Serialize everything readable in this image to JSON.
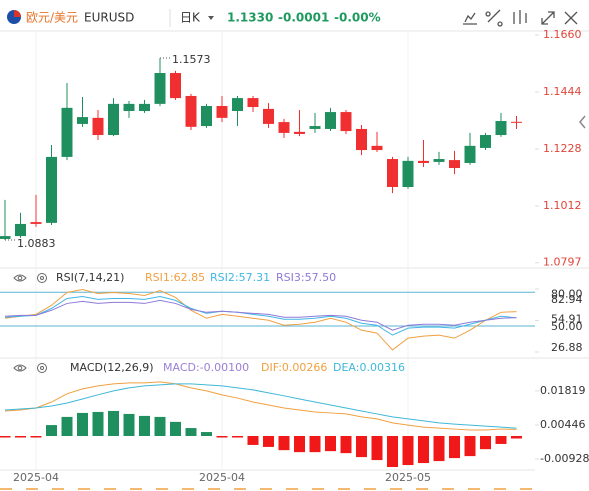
{
  "header": {
    "pair_name": "欧元/美元",
    "symbol": "EURUSD",
    "period": "日K",
    "price": "1.1330",
    "change": "-0.0001",
    "change_pct": "-0.00%"
  },
  "chart_data": [
    {
      "type": "candlestick",
      "categories": [
        null,
        null,
        "2025-04",
        null,
        null,
        null,
        null,
        null,
        null,
        null,
        null,
        null,
        null,
        null,
        "2025-04",
        null,
        null,
        null,
        null,
        null,
        null,
        null,
        null,
        null,
        null,
        null,
        "2025-05",
        null,
        null,
        null,
        null,
        null,
        null,
        null
      ],
      "open": [
        1.0887,
        1.0898,
        1.0951,
        1.0948,
        1.1198,
        1.1323,
        1.1346,
        1.1281,
        1.1372,
        1.1372,
        1.1399,
        1.1516,
        1.1429,
        1.1315,
        1.1391,
        1.1372,
        1.1421,
        1.138,
        1.133,
        1.1293,
        1.1304,
        1.1304,
        1.1368,
        1.1304,
        1.124,
        1.119,
        1.1084,
        1.1183,
        1.1179,
        1.1186,
        1.1175,
        1.1232,
        1.1281,
        1.1331
      ],
      "high": [
        1.1035,
        1.0986,
        1.1054,
        1.1243,
        1.1478,
        1.1425,
        1.1376,
        1.1421,
        1.141,
        1.1414,
        1.1573,
        1.1524,
        1.1437,
        1.1399,
        1.1429,
        1.1429,
        1.1429,
        1.1402,
        1.1342,
        1.1376,
        1.1365,
        1.1384,
        1.1376,
        1.1319,
        1.1293,
        1.1198,
        1.1198,
        1.1262,
        1.1217,
        1.1221,
        1.1289,
        1.1289,
        1.1365,
        1.1353
      ],
      "low": [
        1.0883,
        1.0891,
        1.0933,
        1.094,
        1.1186,
        1.1312,
        1.1262,
        1.1277,
        1.1346,
        1.1365,
        1.1391,
        1.1414,
        1.13,
        1.1308,
        1.133,
        1.1315,
        1.1368,
        1.1308,
        1.127,
        1.1277,
        1.1289,
        1.1296,
        1.1285,
        1.1205,
        1.1217,
        1.1061,
        1.1077,
        1.116,
        1.1168,
        1.1133,
        1.1168,
        1.1224,
        1.1274,
        1.1304
      ],
      "close": [
        1.0898,
        1.0944,
        1.0944,
        1.1198,
        1.1384,
        1.1349,
        1.1281,
        1.1399,
        1.1399,
        1.1399,
        1.1516,
        1.1421,
        1.1312,
        1.1391,
        1.1346,
        1.1421,
        1.1387,
        1.1323,
        1.1289,
        1.1285,
        1.1315,
        1.1368,
        1.1296,
        1.1224,
        1.1224,
        1.1084,
        1.1183,
        1.1175,
        1.119,
        1.1156,
        1.124,
        1.1281,
        1.1334,
        1.133
      ],
      "up_color": "#1f8f5f",
      "down_color": "#f03030",
      "ylim": [
        1.0777,
        1.1679
      ],
      "yticks": [
        {
          "value": 1.166,
          "label": "1.1660"
        },
        1.1444,
        1.1228,
        1.1012,
        1.0797
      ]
    },
    {
      "type": "line",
      "title": "RSI(7,14,21)",
      "series": [
        {
          "name": "RSI1:62.85",
          "color": "#f0a040",
          "values": [
            56.9,
            58.7,
            60.4,
            68.4,
            79.8,
            82.5,
            78.9,
            79.8,
            78.9,
            77.2,
            81.6,
            75.4,
            64.0,
            56.9,
            60.4,
            58.7,
            56.9,
            55.1,
            50.7,
            51.6,
            53.4,
            56.9,
            53.4,
            46.3,
            43.7,
            28.7,
            39.2,
            41.0,
            41.9,
            39.2,
            46.3,
            55.1,
            62.2,
            62.85
          ]
        },
        {
          "name": "RSI2:57.31",
          "color": "#41b6e6",
          "values": [
            57.8,
            58.7,
            59.5,
            65.7,
            74.5,
            76.3,
            73.7,
            74.5,
            74.5,
            73.7,
            76.3,
            72.8,
            65.7,
            61.3,
            63.1,
            62.2,
            60.4,
            58.7,
            56.0,
            56.0,
            56.9,
            58.7,
            56.9,
            52.5,
            50.7,
            41.9,
            48.1,
            49.0,
            49.0,
            48.1,
            51.6,
            55.1,
            58.7,
            57.31
          ]
        },
        {
          "name": "RSI3:57.50",
          "color": "#8e7ad8",
          "values": [
            58.7,
            59.5,
            59.5,
            64.0,
            70.1,
            71.9,
            70.1,
            71.0,
            71.0,
            70.1,
            72.8,
            70.1,
            64.8,
            62.2,
            63.1,
            62.2,
            61.3,
            60.4,
            57.8,
            57.8,
            58.7,
            59.5,
            58.7,
            55.1,
            53.4,
            46.3,
            50.7,
            51.6,
            51.6,
            50.7,
            53.4,
            55.1,
            56.9,
            57.5
          ]
        }
      ],
      "ylim": [
        26.88,
        82.94
      ],
      "yticks": [
        82.94,
        54.91,
        26.88
      ],
      "reference_lines": [
        {
          "value": 80,
          "label": "80.00"
        },
        {
          "value": 50,
          "label": "50.00"
        }
      ],
      "reference_color": "#5bb5d5"
    },
    {
      "type": "macd",
      "title": "MACD(12,26,9)",
      "series": [
        {
          "name": "MACD:-0.00100",
          "type": "bar",
          "label_color": "#9b7fd4",
          "color": "#1f8f5f",
          "negative_color": "#f01818",
          "values": [
            -0.0003,
            -0.0003,
            -0.0003,
            0.0044,
            0.0077,
            0.0093,
            0.0097,
            0.0101,
            0.0089,
            0.0081,
            0.0077,
            0.0057,
            0.0032,
            0.0016,
            -0.0004,
            -0.0004,
            -0.0036,
            -0.0044,
            -0.0057,
            -0.0065,
            -0.0065,
            -0.0061,
            -0.0069,
            -0.0085,
            -0.0097,
            -0.0125,
            -0.0117,
            -0.0109,
            -0.0101,
            -0.0089,
            -0.0081,
            -0.0053,
            -0.0032,
            -0.001
          ]
        },
        {
          "name": "DIF:0.00266",
          "type": "line",
          "color": "#f0a040",
          "values": [
            0.0101,
            0.0105,
            0.0113,
            0.0137,
            0.017,
            0.019,
            0.0202,
            0.021,
            0.0214,
            0.0214,
            0.0218,
            0.021,
            0.0194,
            0.0182,
            0.0166,
            0.0153,
            0.0137,
            0.0125,
            0.0113,
            0.0105,
            0.0097,
            0.0093,
            0.0089,
            0.0077,
            0.0069,
            0.0053,
            0.0044,
            0.0036,
            0.0032,
            0.0028,
            0.0024,
            0.0024,
            0.0028,
            0.00266
          ]
        },
        {
          "name": "DEA:0.00316",
          "type": "line",
          "color": "#3fb8d8",
          "values": [
            0.0105,
            0.0109,
            0.0113,
            0.0121,
            0.0133,
            0.0149,
            0.0166,
            0.0182,
            0.0194,
            0.0202,
            0.0206,
            0.021,
            0.021,
            0.0206,
            0.0202,
            0.0194,
            0.0186,
            0.0174,
            0.0162,
            0.0149,
            0.0137,
            0.0125,
            0.0113,
            0.0101,
            0.0089,
            0.0077,
            0.0069,
            0.0061,
            0.0053,
            0.0048,
            0.0044,
            0.004,
            0.0036,
            0.00316
          ]
        }
      ],
      "ylim": [
        -0.0137,
        0.0258
      ],
      "yticks": [
        0.01819,
        0.00446,
        -0.00928
      ]
    }
  ]
}
